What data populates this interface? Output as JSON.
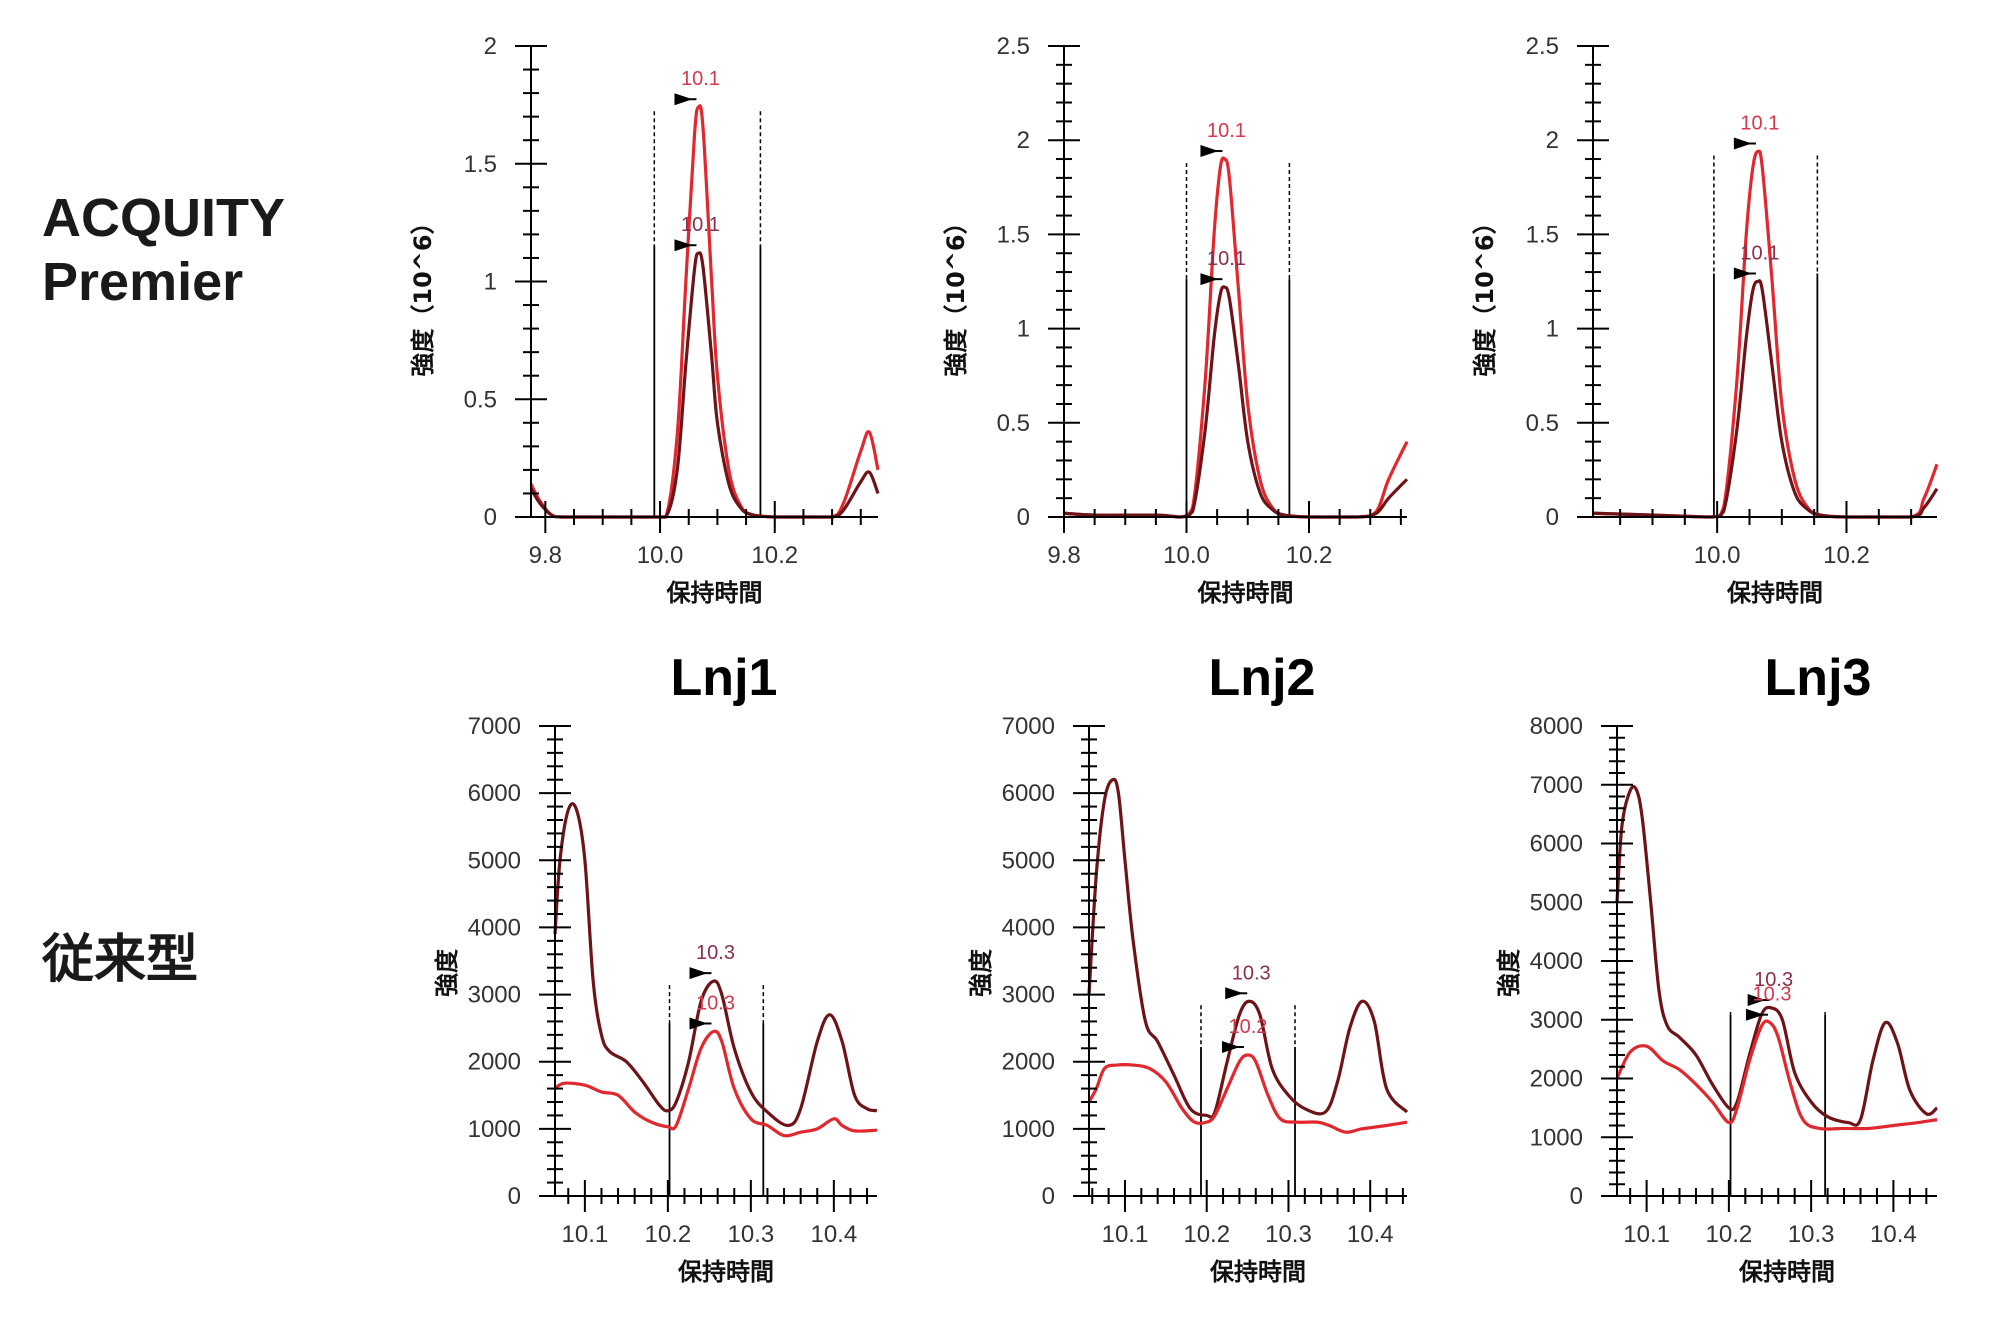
{
  "row_labels": {
    "top": [
      "ACQUITY",
      "Premier"
    ],
    "bottom": "従来型"
  },
  "column_titles": [
    "Lnj1",
    "Lnj2",
    "Lnj3"
  ],
  "colors": {
    "series_red": "#e0282e",
    "series_dark": "#6e1418",
    "label_red": "#d43a4e",
    "label_dark": "#8a2e4e",
    "axis": "#000000"
  },
  "chart_data": [
    {
      "type": "line",
      "panel": "ACQUITY Premier - Lnj1",
      "xlabel": "保持時間",
      "ylabel": "強度（10^6）",
      "xlim": [
        9.775,
        10.38
      ],
      "ylim": [
        0,
        2
      ],
      "xticks": [
        9.8,
        10.0,
        10.2
      ],
      "xtick_labels": [
        "9.8",
        "10.0",
        "10.2"
      ],
      "yticks": [
        0,
        0.5,
        1,
        1.5,
        2
      ],
      "ytick_labels": [
        "0",
        "0.5",
        "1",
        "1.5",
        "2"
      ],
      "integration_bounds": [
        9.99,
        10.175
      ],
      "series": [
        {
          "name": "red",
          "color_key": "series_red",
          "x": [
            9.775,
            9.79,
            9.81,
            9.83,
            9.9,
            9.98,
            10.01,
            10.03,
            10.045,
            10.06,
            10.067,
            10.075,
            10.09,
            10.1,
            10.12,
            10.14,
            10.16,
            10.2,
            10.25,
            10.3,
            10.32,
            10.35,
            10.365,
            10.38
          ],
          "y": [
            0.14,
            0.07,
            0.01,
            0.0,
            0.0,
            0.0,
            0.0,
            0.35,
            1.0,
            1.62,
            1.74,
            1.65,
            1.0,
            0.6,
            0.2,
            0.05,
            0.01,
            0.0,
            0.0,
            0.0,
            0.06,
            0.28,
            0.36,
            0.2
          ],
          "peak_label": "10.1",
          "peak_x": 10.067,
          "peak_y": 1.74
        },
        {
          "name": "dark",
          "color_key": "series_dark",
          "x": [
            9.775,
            9.79,
            9.81,
            9.83,
            9.9,
            9.98,
            10.01,
            10.03,
            10.045,
            10.06,
            10.067,
            10.075,
            10.09,
            10.1,
            10.12,
            10.14,
            10.16,
            10.2,
            10.25,
            10.3,
            10.32,
            10.35,
            10.365,
            10.38
          ],
          "y": [
            0.12,
            0.06,
            0.01,
            0.0,
            0.0,
            0.0,
            0.0,
            0.2,
            0.65,
            1.05,
            1.12,
            1.06,
            0.68,
            0.4,
            0.14,
            0.04,
            0.01,
            0.0,
            0.0,
            0.0,
            0.03,
            0.15,
            0.19,
            0.1
          ],
          "peak_label": "10.1",
          "peak_x": 10.067,
          "peak_y": 1.12
        }
      ]
    },
    {
      "type": "line",
      "panel": "ACQUITY Premier - Lnj2",
      "xlabel": "保持時間",
      "ylabel": "強度（10^6）",
      "xlim": [
        9.8,
        10.36
      ],
      "ylim": [
        0,
        2.5
      ],
      "xticks": [
        9.8,
        10.0,
        10.2
      ],
      "xtick_labels": [
        "9.8",
        "10.0",
        "10.2"
      ],
      "yticks": [
        0,
        0.5,
        1,
        1.5,
        2,
        2.5
      ],
      "ytick_labels": [
        "0",
        "0.5",
        "1",
        "1.5",
        "2",
        "2.5"
      ],
      "integration_bounds": [
        10.0,
        10.168
      ],
      "series": [
        {
          "name": "red",
          "color_key": "series_red",
          "x": [
            9.8,
            9.85,
            9.95,
            9.99,
            10.01,
            10.03,
            10.045,
            10.055,
            10.062,
            10.07,
            10.085,
            10.1,
            10.12,
            10.14,
            10.16,
            10.2,
            10.28,
            10.31,
            10.33,
            10.36
          ],
          "y": [
            0.02,
            0.01,
            0.01,
            0.0,
            0.05,
            0.7,
            1.5,
            1.85,
            1.9,
            1.8,
            1.2,
            0.6,
            0.2,
            0.05,
            0.01,
            0.0,
            0.0,
            0.03,
            0.2,
            0.4
          ],
          "peak_label": "10.1",
          "peak_x": 10.062,
          "peak_y": 1.9
        },
        {
          "name": "dark",
          "color_key": "series_dark",
          "x": [
            9.8,
            9.85,
            9.95,
            9.99,
            10.01,
            10.03,
            10.045,
            10.055,
            10.062,
            10.07,
            10.085,
            10.1,
            10.12,
            10.14,
            10.16,
            10.2,
            10.28,
            10.31,
            10.33,
            10.36
          ],
          "y": [
            0.02,
            0.01,
            0.01,
            0.0,
            0.03,
            0.45,
            0.95,
            1.18,
            1.22,
            1.16,
            0.8,
            0.4,
            0.13,
            0.04,
            0.01,
            0.0,
            0.0,
            0.02,
            0.1,
            0.2
          ],
          "peak_label": "10.1",
          "peak_x": 10.062,
          "peak_y": 1.22
        }
      ]
    },
    {
      "type": "line",
      "panel": "ACQUITY Premier - Lnj3",
      "xlabel": "保持時間",
      "ylabel": "強度（10^6）",
      "xlim": [
        9.808,
        10.34
      ],
      "ylim": [
        0,
        2.5
      ],
      "xticks": [
        10.0,
        10.2
      ],
      "xtick_labels": [
        "10.0",
        "10.2"
      ],
      "yticks": [
        0,
        0.5,
        1,
        1.5,
        2,
        2.5
      ],
      "ytick_labels": [
        "0",
        "0.5",
        "1",
        "1.5",
        "2",
        "2.5"
      ],
      "integration_bounds": [
        9.995,
        10.155
      ],
      "series": [
        {
          "name": "red",
          "color_key": "series_red",
          "x": [
            9.808,
            9.9,
            9.99,
            10.01,
            10.03,
            10.045,
            10.055,
            10.063,
            10.07,
            10.085,
            10.1,
            10.12,
            10.14,
            10.16,
            10.2,
            10.3,
            10.32,
            10.34
          ],
          "y": [
            0.02,
            0.01,
            0.0,
            0.05,
            0.7,
            1.5,
            1.85,
            1.94,
            1.85,
            1.25,
            0.6,
            0.2,
            0.05,
            0.01,
            0.0,
            0.0,
            0.1,
            0.28
          ],
          "peak_label": "10.1",
          "peak_x": 10.063,
          "peak_y": 1.94
        },
        {
          "name": "dark",
          "color_key": "series_dark",
          "x": [
            9.808,
            9.9,
            9.99,
            10.01,
            10.03,
            10.045,
            10.055,
            10.063,
            10.07,
            10.085,
            10.1,
            10.12,
            10.14,
            10.16,
            10.2,
            10.3,
            10.32,
            10.34
          ],
          "y": [
            0.02,
            0.01,
            0.0,
            0.03,
            0.45,
            0.95,
            1.2,
            1.25,
            1.2,
            0.8,
            0.4,
            0.13,
            0.04,
            0.01,
            0.0,
            0.0,
            0.05,
            0.15
          ],
          "peak_label": "10.1",
          "peak_x": 10.063,
          "peak_y": 1.25
        }
      ]
    },
    {
      "type": "line",
      "panel": "従来型 - Lnj1",
      "title": "Lnj1",
      "xlabel": "保持時間",
      "ylabel": "強度",
      "xlim": [
        10.064,
        10.452
      ],
      "ylim": [
        0,
        7000
      ],
      "xticks": [
        10.1,
        10.2,
        10.3,
        10.4
      ],
      "xtick_labels": [
        "10.1",
        "10.2",
        "10.3",
        "10.4"
      ],
      "yticks": [
        0,
        1000,
        2000,
        3000,
        4000,
        5000,
        6000,
        7000
      ],
      "ytick_labels": [
        "0",
        "1000",
        "2000",
        "3000",
        "4000",
        "5000",
        "6000",
        "7000"
      ],
      "integration_bounds": [
        10.202,
        10.315
      ],
      "series": [
        {
          "name": "dark",
          "color_key": "series_dark",
          "x": [
            10.064,
            10.07,
            10.08,
            10.09,
            10.1,
            10.11,
            10.12,
            10.13,
            10.15,
            10.17,
            10.19,
            10.2,
            10.21,
            10.225,
            10.24,
            10.255,
            10.265,
            10.28,
            10.3,
            10.32,
            10.345,
            10.36,
            10.38,
            10.395,
            10.41,
            10.425,
            10.44,
            10.452
          ],
          "y": [
            3900,
            5000,
            5750,
            5750,
            5000,
            3200,
            2400,
            2150,
            2000,
            1700,
            1350,
            1270,
            1400,
            2000,
            2900,
            3200,
            3000,
            2200,
            1550,
            1250,
            1050,
            1300,
            2300,
            2700,
            2300,
            1500,
            1300,
            1270
          ],
          "peak_label": "10.3",
          "peak_x": 10.255,
          "peak_y": 3200
        },
        {
          "name": "red",
          "color_key": "series_red",
          "x": [
            10.064,
            10.075,
            10.1,
            10.12,
            10.14,
            10.16,
            10.18,
            10.2,
            10.21,
            10.225,
            10.24,
            10.255,
            10.265,
            10.28,
            10.3,
            10.32,
            10.34,
            10.36,
            10.38,
            10.4,
            10.41,
            10.425,
            10.452
          ],
          "y": [
            1600,
            1680,
            1650,
            1550,
            1500,
            1250,
            1100,
            1030,
            1050,
            1600,
            2200,
            2450,
            2300,
            1600,
            1150,
            1050,
            900,
            950,
            1000,
            1150,
            1050,
            970,
            980
          ],
          "peak_label": "10.3",
          "peak_x": 10.255,
          "peak_y": 2450
        }
      ]
    },
    {
      "type": "line",
      "panel": "従来型 - Lnj2",
      "title": "Lnj2",
      "xlabel": "保持時間",
      "ylabel": "強度",
      "xlim": [
        10.056,
        10.445
      ],
      "ylim": [
        0,
        7000
      ],
      "xticks": [
        10.1,
        10.2,
        10.3,
        10.4
      ],
      "xtick_labels": [
        "10.1",
        "10.2",
        "10.3",
        "10.4"
      ],
      "integration_bounds": [
        10.193,
        10.308
      ],
      "yticks": [
        0,
        1000,
        2000,
        3000,
        4000,
        5000,
        6000,
        7000
      ],
      "ytick_labels": [
        "0",
        "1000",
        "2000",
        "3000",
        "4000",
        "5000",
        "6000",
        "7000"
      ],
      "series": [
        {
          "name": "dark",
          "color_key": "series_dark",
          "x": [
            10.056,
            10.065,
            10.075,
            10.085,
            10.092,
            10.1,
            10.11,
            10.125,
            10.14,
            10.16,
            10.18,
            10.2,
            10.21,
            10.225,
            10.24,
            10.252,
            10.265,
            10.28,
            10.3,
            10.32,
            10.345,
            10.36,
            10.375,
            10.39,
            10.405,
            10.42,
            10.445
          ],
          "y": [
            3000,
            4800,
            5900,
            6200,
            6000,
            5000,
            3800,
            2600,
            2300,
            1800,
            1300,
            1200,
            1250,
            2000,
            2700,
            2900,
            2700,
            1900,
            1500,
            1300,
            1250,
            1700,
            2500,
            2900,
            2600,
            1600,
            1250
          ],
          "peak_label": "10.3",
          "peak_x": 10.252,
          "peak_y": 2900
        },
        {
          "name": "red",
          "color_key": "series_red",
          "x": [
            10.056,
            10.065,
            10.075,
            10.09,
            10.11,
            10.13,
            10.15,
            10.17,
            10.185,
            10.2,
            10.21,
            10.225,
            10.24,
            10.25,
            10.26,
            10.275,
            10.29,
            10.31,
            10.335,
            10.35,
            10.37,
            10.39,
            10.42,
            10.445
          ],
          "y": [
            1400,
            1600,
            1900,
            1950,
            1950,
            1900,
            1700,
            1300,
            1100,
            1100,
            1200,
            1600,
            2000,
            2100,
            2000,
            1500,
            1150,
            1100,
            1100,
            1050,
            950,
            1000,
            1050,
            1100
          ],
          "peak_label": "10.2",
          "peak_x": 10.248,
          "peak_y": 2100
        }
      ]
    },
    {
      "type": "line",
      "panel": "従来型 - Lnj3",
      "title": "Lnj3",
      "xlabel": "保持時間",
      "ylabel": "強度",
      "xlim": [
        10.064,
        10.453
      ],
      "ylim": [
        0,
        8000
      ],
      "xticks": [
        10.1,
        10.2,
        10.3,
        10.4
      ],
      "xtick_labels": [
        "10.1",
        "10.2",
        "10.3",
        "10.4"
      ],
      "yticks": [
        0,
        1000,
        2000,
        3000,
        4000,
        5000,
        6000,
        7000,
        8000
      ],
      "ytick_labels": [
        "0",
        "1000",
        "2000",
        "3000",
        "4000",
        "5000",
        "6000",
        "7000",
        "8000"
      ],
      "integration_bounds": [
        10.202,
        10.317
      ],
      "series": [
        {
          "name": "dark",
          "color_key": "series_dark",
          "x": [
            10.064,
            10.07,
            10.08,
            10.088,
            10.095,
            10.105,
            10.115,
            10.125,
            10.14,
            10.16,
            10.18,
            10.2,
            10.21,
            10.225,
            10.24,
            10.252,
            10.265,
            10.28,
            10.3,
            10.32,
            10.345,
            10.36,
            10.375,
            10.39,
            10.405,
            10.42,
            10.44,
            10.453
          ],
          "y": [
            5000,
            6300,
            6900,
            6900,
            6400,
            5000,
            3500,
            2900,
            2700,
            2400,
            1900,
            1500,
            1600,
            2400,
            3100,
            3200,
            3000,
            2100,
            1600,
            1350,
            1250,
            1300,
            2300,
            2950,
            2600,
            1800,
            1400,
            1500
          ],
          "peak_label": "10.3",
          "peak_x": 10.252,
          "peak_y": 3200
        },
        {
          "name": "red",
          "color_key": "series_red",
          "x": [
            10.064,
            10.08,
            10.1,
            10.12,
            10.14,
            10.16,
            10.18,
            10.2,
            10.21,
            10.225,
            10.24,
            10.25,
            10.26,
            10.275,
            10.29,
            10.31,
            10.34,
            10.37,
            10.4,
            10.43,
            10.453
          ],
          "y": [
            2000,
            2450,
            2550,
            2300,
            2150,
            1900,
            1600,
            1250,
            1500,
            2300,
            2900,
            2950,
            2700,
            1900,
            1300,
            1150,
            1150,
            1150,
            1200,
            1250,
            1300
          ],
          "peak_label": "10.3",
          "peak_x": 10.25,
          "peak_y": 2950
        }
      ]
    }
  ]
}
